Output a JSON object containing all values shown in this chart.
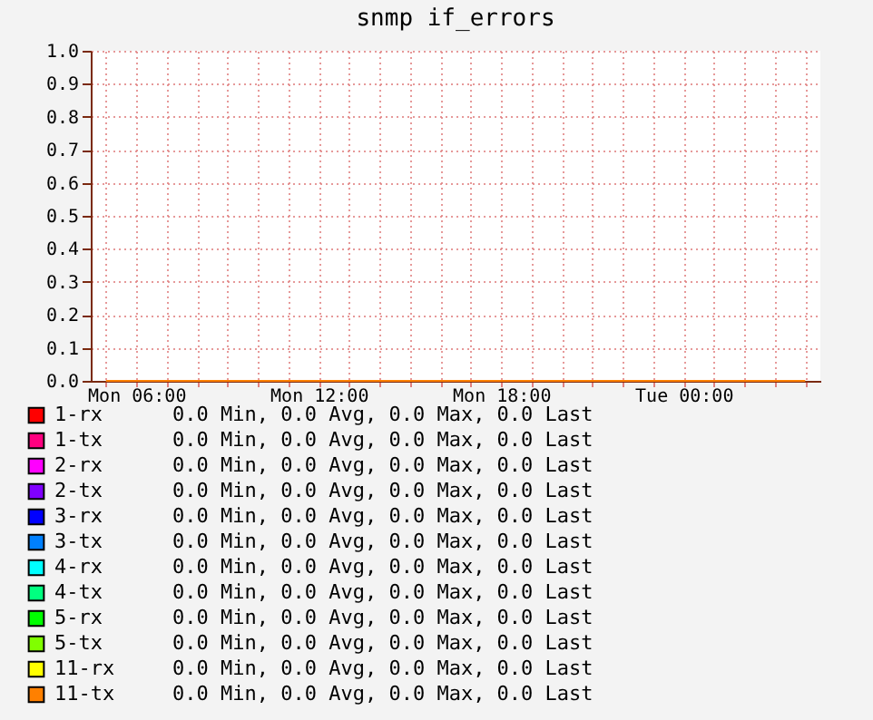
{
  "chart_data": {
    "type": "line",
    "title": "snmp if_errors",
    "ylim": [
      0,
      1
    ],
    "yticks": [
      {
        "value": 0,
        "label": "0.0"
      },
      {
        "value": 0.1,
        "label": "0.1"
      },
      {
        "value": 0.2,
        "label": "0.2"
      },
      {
        "value": 0.3,
        "label": "0.3"
      },
      {
        "value": 0.4,
        "label": "0.4"
      },
      {
        "value": 0.5,
        "label": "0.5"
      },
      {
        "value": 0.6,
        "label": "0.6"
      },
      {
        "value": 0.7,
        "label": "0.7"
      },
      {
        "value": 0.8,
        "label": "0.8"
      },
      {
        "value": 0.9,
        "label": "0.9"
      },
      {
        "value": 1,
        "label": "1.0"
      }
    ],
    "categories": [
      null,
      "Mon 06:00",
      null,
      null,
      null,
      null,
      null,
      "Mon 12:00",
      null,
      null,
      null,
      null,
      null,
      "Mon 18:00",
      null,
      null,
      null,
      null,
      null,
      "Tue 00:00",
      null,
      null,
      null,
      null
    ],
    "grid": true,
    "legend": "bottom",
    "marker": "none",
    "line_style": "solid",
    "series": [
      {
        "name": "1-rx",
        "color": "#ff0000",
        "values": [
          null,
          null,
          null,
          null,
          null,
          null,
          null,
          null,
          null,
          null,
          null,
          null,
          null,
          null,
          null,
          null,
          null,
          null,
          null,
          null,
          null,
          null,
          null,
          null
        ]
      },
      {
        "name": "1-tx",
        "color": "#ff0080",
        "values": [
          null,
          null,
          null,
          null,
          null,
          null,
          null,
          null,
          null,
          null,
          null,
          null,
          null,
          null,
          null,
          null,
          null,
          null,
          null,
          null,
          null,
          null,
          null,
          null
        ]
      },
      {
        "name": "2-rx",
        "color": "#ff00ff",
        "values": [
          null,
          null,
          null,
          null,
          null,
          null,
          null,
          null,
          null,
          null,
          null,
          null,
          null,
          null,
          null,
          null,
          null,
          null,
          null,
          null,
          null,
          null,
          null,
          null
        ]
      },
      {
        "name": "2-tx",
        "color": "#8000ff",
        "values": [
          null,
          null,
          null,
          null,
          null,
          null,
          null,
          null,
          null,
          null,
          null,
          null,
          null,
          null,
          null,
          null,
          null,
          null,
          null,
          null,
          null,
          null,
          null,
          null
        ]
      },
      {
        "name": "3-rx",
        "color": "#0000ff",
        "values": [
          null,
          null,
          null,
          null,
          null,
          null,
          null,
          null,
          null,
          null,
          null,
          null,
          null,
          null,
          null,
          null,
          null,
          null,
          null,
          null,
          null,
          null,
          null,
          null
        ]
      },
      {
        "name": "3-tx",
        "color": "#0080ff",
        "values": [
          null,
          null,
          null,
          null,
          null,
          null,
          null,
          null,
          null,
          null,
          null,
          null,
          null,
          null,
          null,
          null,
          null,
          null,
          null,
          null,
          null,
          null,
          null,
          null
        ]
      },
      {
        "name": "4-rx",
        "color": "#00ffff",
        "values": [
          null,
          null,
          null,
          null,
          null,
          null,
          null,
          null,
          null,
          null,
          null,
          null,
          null,
          null,
          null,
          null,
          null,
          null,
          null,
          null,
          null,
          null,
          null,
          null
        ]
      },
      {
        "name": "4-tx",
        "color": "#00ff80",
        "values": [
          null,
          null,
          null,
          null,
          null,
          null,
          null,
          null,
          null,
          null,
          null,
          null,
          null,
          null,
          null,
          null,
          null,
          null,
          null,
          null,
          null,
          null,
          null,
          null
        ]
      },
      {
        "name": "5-rx",
        "color": "#00ff00",
        "values": [
          null,
          null,
          null,
          null,
          null,
          null,
          null,
          null,
          null,
          null,
          null,
          null,
          null,
          null,
          null,
          null,
          null,
          null,
          null,
          null,
          null,
          null,
          null,
          null
        ]
      },
      {
        "name": "5-tx",
        "color": "#80ff00",
        "values": [
          null,
          null,
          null,
          null,
          null,
          null,
          null,
          null,
          null,
          null,
          null,
          null,
          null,
          null,
          null,
          null,
          null,
          null,
          null,
          null,
          null,
          null,
          null,
          null
        ]
      },
      {
        "name": "11-rx",
        "color": "#ffff00",
        "values": [
          null,
          null,
          null,
          null,
          null,
          null,
          null,
          null,
          null,
          null,
          null,
          null,
          null,
          null,
          null,
          null,
          null,
          null,
          null,
          null,
          null,
          null,
          null,
          null
        ]
      },
      {
        "name": "11-tx",
        "color": "#ff8000",
        "values": [
          0,
          0,
          0,
          0,
          0,
          0,
          0,
          0,
          0,
          0,
          0,
          0,
          0,
          0,
          0,
          0,
          0,
          0,
          0,
          0,
          0,
          0,
          0,
          0
        ]
      }
    ],
    "annotations": [
      "0.0 Min, 0.0 Avg, 0.0 Max, 0.0 Last",
      "0.0 Min, 0.0 Avg, 0.0 Max, 0.0 Last",
      "0.0 Min, 0.0 Avg, 0.0 Max, 0.0 Last",
      "0.0 Min, 0.0 Avg, 0.0 Max, 0.0 Last",
      "0.0 Min, 0.0 Avg, 0.0 Max, 0.0 Last",
      "0.0 Min, 0.0 Avg, 0.0 Max, 0.0 Last",
      "0.0 Min, 0.0 Avg, 0.0 Max, 0.0 Last",
      "0.0 Min, 0.0 Avg, 0.0 Max, 0.0 Last",
      "0.0 Min, 0.0 Avg, 0.0 Max, 0.0 Last",
      "0.0 Min, 0.0 Avg, 0.0 Max, 0.0 Last",
      "0.0 Min, 0.0 Avg, 0.0 Max, 0.0 Last",
      "0.0 Min, 0.0 Avg, 0.0 Max, 0.0 Last"
    ]
  }
}
